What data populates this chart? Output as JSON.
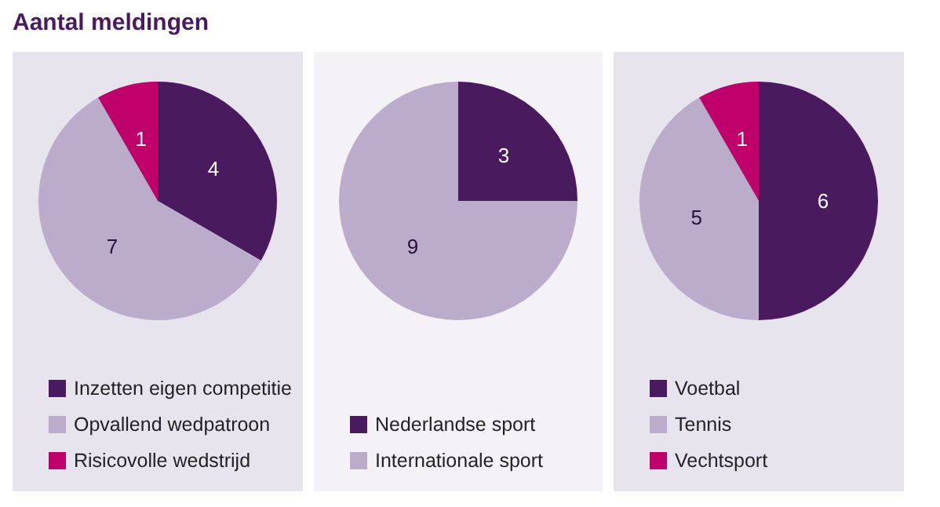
{
  "chart_data": [
    {
      "type": "pie",
      "title": "Aantal meldingen",
      "categories": [
        "Inzetten eigen competitie",
        "Opvallend wedpatroon",
        "Risicovolle wedstrijd"
      ],
      "values": [
        4,
        7,
        1
      ],
      "colors": [
        "#4a1a5e",
        "#bcaccb",
        "#c0006a"
      ],
      "data_labels": true,
      "legend": "bottom"
    },
    {
      "type": "pie",
      "categories": [
        "Nederlandse sport",
        "Internationale sport"
      ],
      "values": [
        3,
        9
      ],
      "colors": [
        "#4a1a5e",
        "#bcaccb"
      ],
      "data_labels": true,
      "legend": "bottom"
    },
    {
      "type": "pie",
      "categories": [
        "Voetbal",
        "Tennis",
        "Vechtsport"
      ],
      "values": [
        6,
        5,
        1
      ],
      "colors": [
        "#4a1a5e",
        "#bcaccb",
        "#c0006a"
      ],
      "data_labels": true,
      "legend": "bottom"
    }
  ]
}
